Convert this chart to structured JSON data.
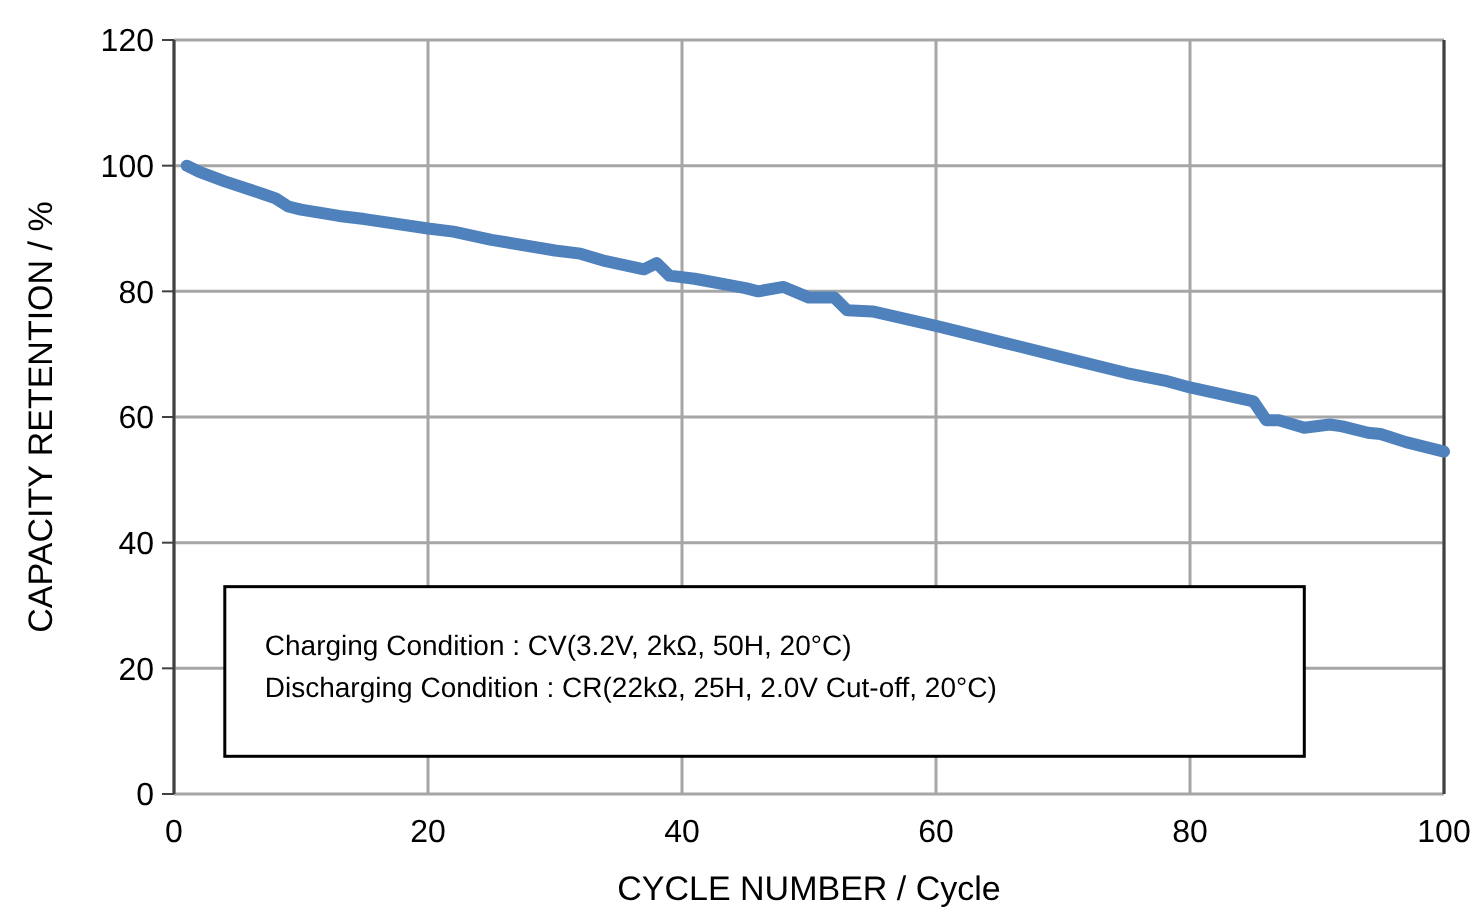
{
  "chart_data": {
    "type": "line",
    "xlabel": "CYCLE NUMBER / Cycle",
    "ylabel": "CAPACITY RETENTION / %",
    "x": [
      1,
      2,
      4,
      7,
      8,
      9,
      10,
      13,
      15,
      20,
      22,
      25,
      30,
      32,
      34,
      37,
      38,
      39,
      41,
      45,
      46,
      48,
      50,
      52,
      53,
      55,
      60,
      62,
      65,
      70,
      75,
      78,
      80,
      85,
      86,
      87,
      89,
      91,
      92,
      94,
      95,
      97,
      100
    ],
    "series": [
      {
        "color": "#4f81bd",
        "values": [
          100,
          99,
          97.5,
          95.5,
          94.8,
          93.5,
          93,
          92,
          91.5,
          90,
          89.5,
          88.2,
          86.5,
          86,
          84.8,
          83.5,
          84.5,
          82.5,
          82,
          80.5,
          80,
          80.7,
          79,
          79,
          77,
          76.8,
          74.5,
          73.5,
          72,
          69.5,
          67,
          65.8,
          64.7,
          62.5,
          59.5,
          59.5,
          58.3,
          58.8,
          58.5,
          57.5,
          57.3,
          56,
          54.5
        ]
      }
    ],
    "xlim": [
      0,
      100
    ],
    "xticks": [
      0,
      20,
      40,
      60,
      80,
      100
    ],
    "ylim": [
      0,
      120
    ],
    "yticks": [
      0,
      20,
      40,
      60,
      80,
      100,
      120
    ],
    "grid": true,
    "marker": "none",
    "line_style": "solid",
    "annotations": [
      "Charging Condition : CV(3.2V, 2kΩ, 50H, 20°C)",
      "Discharging Condition : CR(22kΩ, 25H, 2.0V Cut-off, 20°C)"
    ]
  }
}
